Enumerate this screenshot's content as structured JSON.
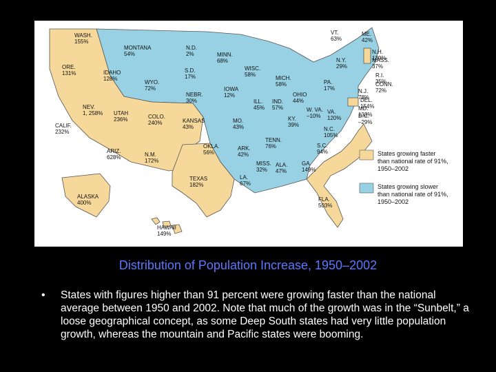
{
  "caption": "Distribution of Population Increase, 1950–2002",
  "bullet_text": "States with figures higher than 91 percent were growing faster than the national average between 1950 and 2002. Note that much of the growth was in the “Sunbelt,” a loose geographical concept, as some Deep South states had very little population growth, whereas the mountain and Pacific states were booming.",
  "colors": {
    "faster": "#f6d99a",
    "slower": "#97d1e3",
    "caption": "#5a78ff"
  },
  "legend": {
    "faster": [
      "States growing faster",
      "than national rate of 91%,",
      "1950–2002"
    ],
    "slower": [
      "States growing slower",
      "than national rate of 91%,",
      "1950–2002"
    ]
  },
  "states": [
    {
      "name": "WASH.",
      "value": "155%",
      "group": "faster"
    },
    {
      "name": "ORE.",
      "value": "131%",
      "group": "faster"
    },
    {
      "name": "CALIF.",
      "value": "232%",
      "group": "faster"
    },
    {
      "name": "NEV.",
      "value": "1, 258%",
      "group": "faster"
    },
    {
      "name": "IDAHO",
      "value": "128%",
      "group": "faster"
    },
    {
      "name": "MONTANA",
      "value": "54%",
      "group": "slower"
    },
    {
      "name": "WYO.",
      "value": "72%",
      "group": "slower"
    },
    {
      "name": "UTAH",
      "value": "236%",
      "group": "faster"
    },
    {
      "name": "COLO.",
      "value": "240%",
      "group": "faster"
    },
    {
      "name": "ARIZ.",
      "value": "628%",
      "group": "faster"
    },
    {
      "name": "N.M.",
      "value": "172%",
      "group": "faster"
    },
    {
      "name": "N.D.",
      "value": "2%",
      "group": "slower"
    },
    {
      "name": "S.D.",
      "value": "17%",
      "group": "slower"
    },
    {
      "name": "NEBR.",
      "value": "30%",
      "group": "slower"
    },
    {
      "name": "KANSAS",
      "value": "43%",
      "group": "slower"
    },
    {
      "name": "OKLA.",
      "value": "56%",
      "group": "slower"
    },
    {
      "name": "TEXAS",
      "value": "182%",
      "group": "faster"
    },
    {
      "name": "MINN.",
      "value": "68%",
      "group": "slower"
    },
    {
      "name": "IOWA",
      "value": "12%",
      "group": "slower"
    },
    {
      "name": "MO.",
      "value": "43%",
      "group": "slower"
    },
    {
      "name": "ARK.",
      "value": "42%",
      "group": "slower"
    },
    {
      "name": "LA.",
      "value": "67%",
      "group": "slower"
    },
    {
      "name": "WISC.",
      "value": "58%",
      "group": "slower"
    },
    {
      "name": "ILL.",
      "value": "45%",
      "group": "slower"
    },
    {
      "name": "MICH.",
      "value": "58%",
      "group": "slower"
    },
    {
      "name": "IND.",
      "value": "57%",
      "group": "slower"
    },
    {
      "name": "OHIO",
      "value": "44%",
      "group": "slower"
    },
    {
      "name": "KY.",
      "value": "39%",
      "group": "slower"
    },
    {
      "name": "TENN.",
      "value": "76%",
      "group": "slower"
    },
    {
      "name": "MISS.",
      "value": "32%",
      "group": "slower"
    },
    {
      "name": "ALA.",
      "value": "47%",
      "group": "slower"
    },
    {
      "name": "GA.",
      "value": "149%",
      "group": "faster"
    },
    {
      "name": "FLA.",
      "value": "503%",
      "group": "faster"
    },
    {
      "name": "S.C.",
      "value": "94%",
      "group": "faster"
    },
    {
      "name": "N.C.",
      "value": "105%",
      "group": "faster"
    },
    {
      "name": "VA.",
      "value": "120%",
      "group": "faster"
    },
    {
      "name": "W. VA.",
      "value": "–10%",
      "group": "slower"
    },
    {
      "name": "PA.",
      "value": "17%",
      "group": "slower"
    },
    {
      "name": "N.Y.",
      "value": "29%",
      "group": "slower"
    },
    {
      "name": "VT.",
      "value": "63%",
      "group": "slower"
    },
    {
      "name": "ME.",
      "value": "42%",
      "group": "slower"
    },
    {
      "name": "N.H.",
      "value": "139%",
      "group": "faster"
    },
    {
      "name": "MASS.",
      "value": "37%",
      "group": "slower"
    },
    {
      "name": "R.I.",
      "value": "35%",
      "group": "slower"
    },
    {
      "name": "CONN.",
      "value": "72%",
      "group": "slower"
    },
    {
      "name": "N.J.",
      "value": "78%",
      "group": "slower"
    },
    {
      "name": "DEL.",
      "value": "154%",
      "group": "faster"
    },
    {
      "name": "MD.",
      "value": "133%",
      "group": "faster"
    },
    {
      "name": "D.C.",
      "value": "–29%",
      "group": "slower"
    },
    {
      "name": "ALASKA",
      "value": "400%",
      "group": "faster"
    },
    {
      "name": "HAWAII",
      "value": "149%",
      "group": "faster"
    }
  ]
}
